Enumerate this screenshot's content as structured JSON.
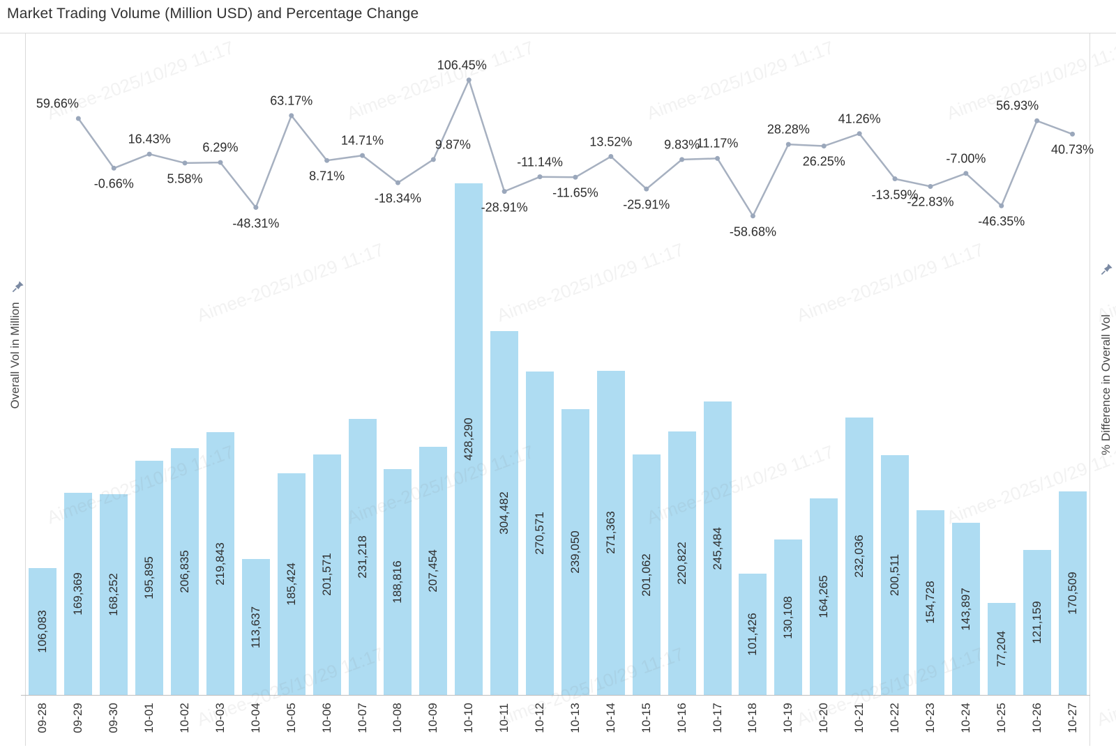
{
  "title": "Market Trading Volume (Million USD) and Percentage Change",
  "axes": {
    "left_label": "Overall Vol in Million",
    "right_label": "% Difference in Overall Vol"
  },
  "watermark_text": "Aimee-2025/10/29 11:17",
  "colors": {
    "bar_fill": "#aedcf2",
    "line_stroke": "#a6b0c0",
    "marker_fill": "#9aa7bb",
    "label_text": "#2d2d2d",
    "border": "#d9d9d9",
    "axis_line": "#bdbdbd"
  },
  "chart_data": {
    "type": "combo: bar + line",
    "title": "Market Trading Volume (Million USD) and Percentage Change",
    "categories": [
      "09-28",
      "09-29",
      "09-30",
      "10-01",
      "10-02",
      "10-03",
      "10-04",
      "10-05",
      "10-06",
      "10-07",
      "10-08",
      "10-09",
      "10-10",
      "10-11",
      "10-12",
      "10-13",
      "10-14",
      "10-15",
      "10-16",
      "10-17",
      "10-18",
      "10-19",
      "10-20",
      "10-21",
      "10-22",
      "10-23",
      "10-24",
      "10-25",
      "10-26",
      "10-27"
    ],
    "grid": false,
    "legend": "none",
    "left_axis": {
      "label": "Overall Vol in Million",
      "range_estimate": [
        0,
        555000
      ],
      "tick_labels_visible": false
    },
    "right_axis": {
      "label": "% Difference in Overall Vol",
      "tick_labels_visible": false
    },
    "series": [
      {
        "name": "Overall Vol in Million",
        "type": "bar",
        "axis": "left",
        "values": [
          106083,
          169369,
          168252,
          195895,
          206835,
          219843,
          113637,
          185424,
          201571,
          231218,
          188816,
          207454,
          428290,
          304482,
          270571,
          239050,
          271363,
          201062,
          220822,
          245484,
          101426,
          130108,
          164265,
          232036,
          200511,
          154728,
          143897,
          77204,
          121159,
          170509
        ],
        "value_labels": [
          "106,083",
          "169,369",
          "168,252",
          "195,895",
          "206,835",
          "219,843",
          "113,637",
          "185,424",
          "201,571",
          "231,218",
          "188,816",
          "207,454",
          "428,290",
          "304,482",
          "270,571",
          "239,050",
          "271,363",
          "201,062",
          "220,822",
          "245,484",
          "101,426",
          "130,108",
          "164,265",
          "232,036",
          "200,511",
          "154,728",
          "143,897",
          "77,204",
          "121,159",
          "170,509"
        ]
      },
      {
        "name": "% Difference in Overall Vol",
        "type": "line",
        "axis": "right",
        "categories": [
          "09-29",
          "09-30",
          "10-01",
          "10-02",
          "10-03",
          "10-04",
          "10-05",
          "10-06",
          "10-07",
          "10-08",
          "10-09",
          "10-10",
          "10-11",
          "10-12",
          "10-13",
          "10-14",
          "10-15",
          "10-16",
          "10-17",
          "10-18",
          "10-19",
          "10-20",
          "10-21",
          "10-22",
          "10-23",
          "10-24",
          "10-25",
          "10-26",
          "10-27"
        ],
        "values": [
          59.66,
          -0.66,
          16.43,
          5.58,
          6.29,
          -48.31,
          63.17,
          8.71,
          14.71,
          -18.34,
          9.87,
          106.45,
          -28.91,
          -11.14,
          -11.65,
          13.52,
          -25.91,
          9.83,
          11.17,
          -58.68,
          28.28,
          26.25,
          41.26,
          -13.59,
          -22.83,
          -7.0,
          -46.35,
          56.93,
          40.73
        ],
        "value_labels": [
          "59.66%",
          "-0.66%",
          "16.43%",
          "5.58%",
          "6.29%",
          "-48.31%",
          "63.17%",
          "8.71%",
          "14.71%",
          "-18.34%",
          "9.87%",
          "106.45%",
          "-28.91%",
          "-11.14%",
          "-11.65%",
          "13.52%",
          "-25.91%",
          "9.83%",
          "11.17%",
          "-58.68%",
          "28.28%",
          "26.25%",
          "41.26%",
          "-13.59%",
          "-22.83%",
          "-7.00%",
          "-46.35%",
          "56.93%",
          "40.73%"
        ],
        "label_side": [
          "above",
          "below",
          "above",
          "below",
          "above",
          "below",
          "above",
          "below",
          "above",
          "below",
          "above",
          "above",
          "below",
          "above",
          "below",
          "above",
          "below",
          "above",
          "above",
          "below",
          "above",
          "below",
          "above",
          "below",
          "below",
          "above",
          "below",
          "above",
          "below"
        ]
      }
    ]
  }
}
